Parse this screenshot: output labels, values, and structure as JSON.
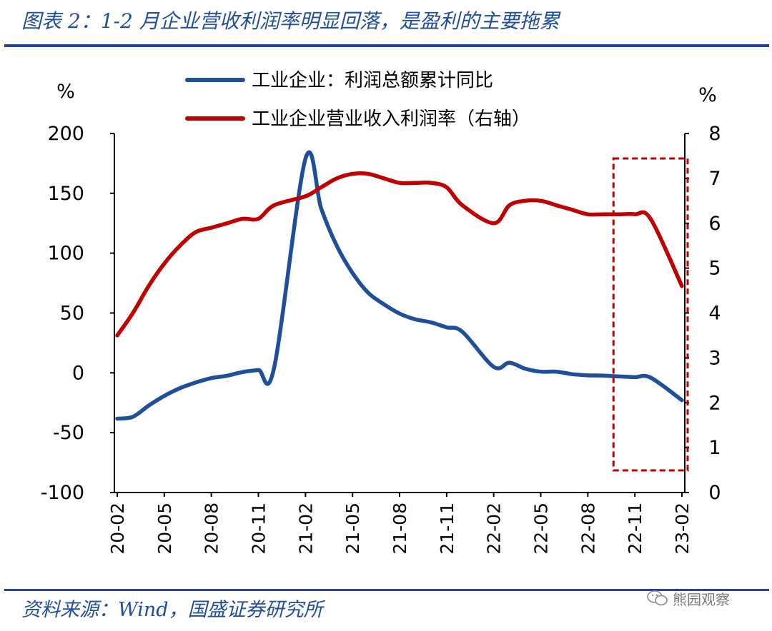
{
  "title": "图表 2：1-2 月企业营收利润率明显回落，是盈利的主要拖累",
  "source": "资料来源：Wind，国盛证券研究所",
  "watermark": "熊园观察",
  "colors": {
    "profit": "#1f4e9a",
    "margin": "#c00000",
    "highlight_box": "#c00000",
    "accent": "#2343a0"
  },
  "chart_data": {
    "type": "line",
    "left_unit": "%",
    "right_unit": "%",
    "x": [
      "20-02",
      "20-03",
      "20-04",
      "20-05",
      "20-06",
      "20-07",
      "20-08",
      "20-09",
      "20-10",
      "20-11",
      "20-12",
      "21-01",
      "21-02",
      "21-03",
      "21-04",
      "21-05",
      "21-06",
      "21-07",
      "21-08",
      "21-09",
      "21-10",
      "21-11",
      "21-12",
      "22-01",
      "22-02",
      "22-03",
      "22-04",
      "22-05",
      "22-06",
      "22-07",
      "22-08",
      "22-09",
      "22-10",
      "22-11",
      "22-12",
      "23-01",
      "23-02"
    ],
    "x_tick_labels": [
      "20-02",
      "20-05",
      "20-08",
      "20-11",
      "21-02",
      "21-05",
      "21-08",
      "21-11",
      "22-02",
      "22-05",
      "22-08",
      "22-11",
      "23-02"
    ],
    "ylim_left": [
      -100,
      200
    ],
    "yticks_left": [
      -100,
      -50,
      0,
      50,
      100,
      150,
      200
    ],
    "ylim_right": [
      0,
      8
    ],
    "yticks_right": [
      0,
      1,
      2,
      3,
      4,
      5,
      6,
      7,
      8
    ],
    "series": [
      {
        "name": "工业企业：利润总额累计同比",
        "axis": "left",
        "values": [
          -38.3,
          -36.7,
          -27.4,
          -19.3,
          -12.8,
          -8.1,
          -4.4,
          -2.4,
          0.7,
          2.4,
          4.1,
          null,
          178.9,
          137.3,
          106.0,
          83.4,
          66.9,
          57.3,
          49.5,
          44.7,
          42.2,
          38.0,
          34.3,
          null,
          5.0,
          8.5,
          3.5,
          1.0,
          1.0,
          -1.1,
          -2.1,
          -2.3,
          -3.0,
          -3.6,
          -4.0,
          null,
          -22.9
        ]
      },
      {
        "name": "工业企业营业收入利润率（右轴）",
        "axis": "right",
        "values": [
          3.5,
          4.0,
          4.6,
          5.1,
          5.5,
          5.8,
          5.9,
          6.0,
          6.1,
          6.1,
          6.4,
          null,
          6.6,
          6.8,
          7.0,
          7.1,
          7.1,
          7.0,
          6.9,
          6.9,
          6.9,
          6.8,
          6.4,
          null,
          6.0,
          6.4,
          6.5,
          6.5,
          6.4,
          6.3,
          6.2,
          6.2,
          6.2,
          6.2,
          6.1,
          null,
          4.6
        ]
      }
    ],
    "highlight": {
      "from": "22-10",
      "to": "23-02",
      "style": "dashed-box"
    },
    "grid": false,
    "legend": "top"
  }
}
